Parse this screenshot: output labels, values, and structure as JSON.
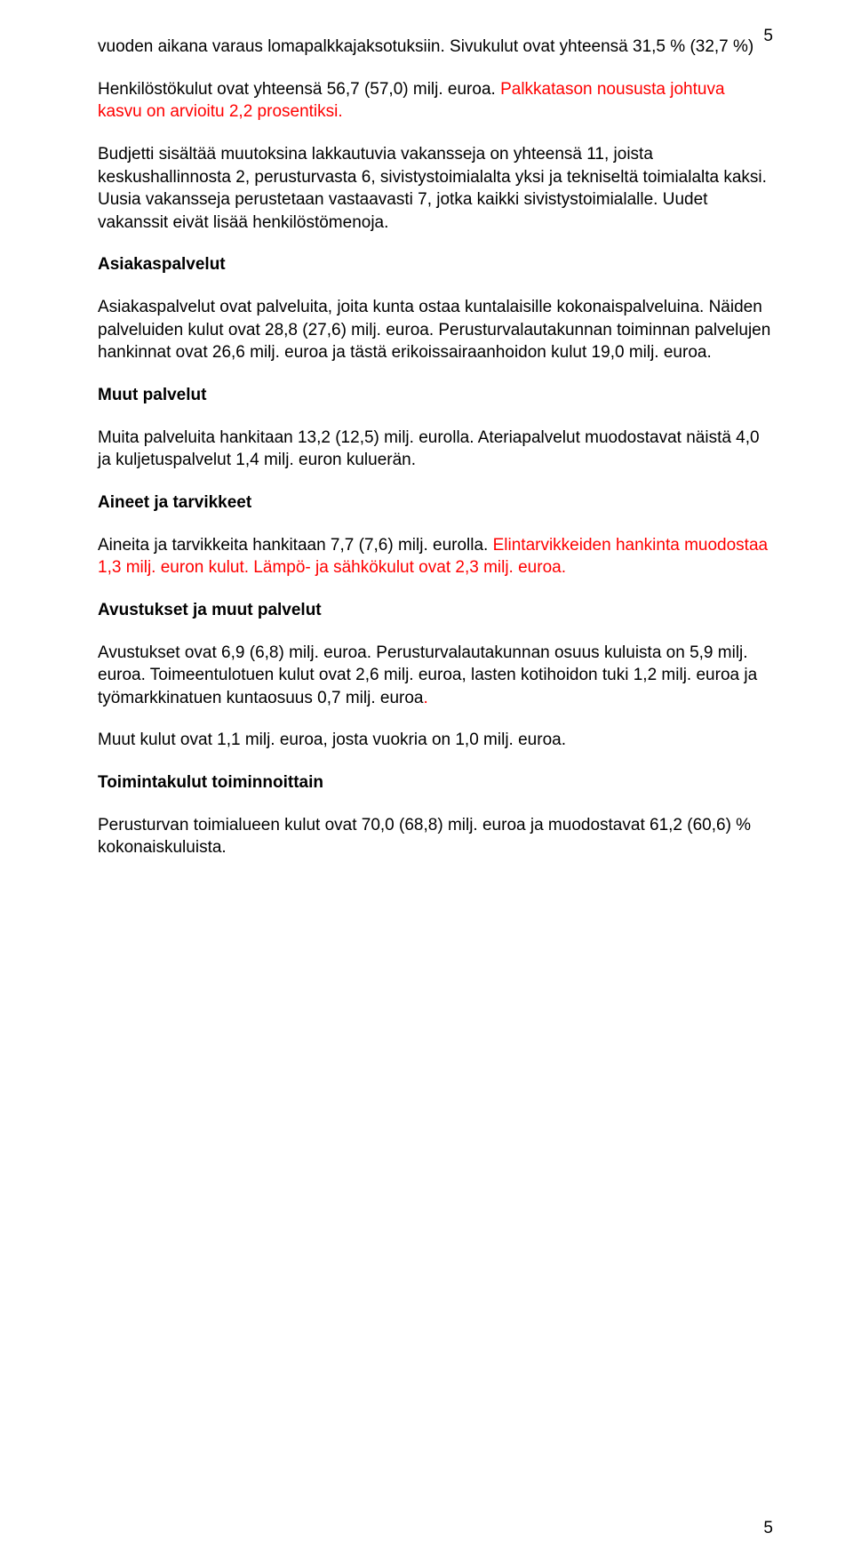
{
  "pageNumberTop": "5",
  "pageNumberBottom": "5",
  "colors": {
    "text": "#000000",
    "red": "#ff0000",
    "background": "#ffffff"
  },
  "typography": {
    "fontFamily": "Arial, Helvetica, sans-serif",
    "bodyFontSize": 19,
    "lineHeight": 1.35,
    "headingWeight": "bold"
  },
  "paragraphs": {
    "p1": "vuoden aikana varaus lomapalkkajaksotuksiin. Sivukulut ovat yhteensä 31,5 % (32,7 %)",
    "p2a": "Henkilöstökulut ovat yhteensä 56,7 (57,0) milj. euroa. ",
    "p2b": "Palkkatason noususta johtuva kasvu on arvioitu 2,2 prosentiksi.",
    "p3": "Budjetti sisältää  muutoksina lakkautuvia vakansseja on yhteensä 11, joista keskushallinnosta 2, perusturvasta 6, sivistystoimialalta yksi ja tekniseltä toimialalta kaksi. Uusia vakansseja perustetaan vastaavasti 7, jotka kaikki sivistystoimialalle. Uudet vakanssit eivät lisää henkilöstömenoja.",
    "p4": "Asiakaspalvelut ovat palveluita, joita kunta ostaa kuntalaisille kokonaispalveluina. Näiden palveluiden kulut ovat 28,8 (27,6) milj. euroa. Perusturvalautakunnan toiminnan palvelujen hankinnat ovat 26,6 milj. euroa ja tästä erikoissairaanhoidon kulut 19,0 milj. euroa.",
    "p5": "Muita palveluita hankitaan 13,2 (12,5) milj. eurolla. Ateriapalvelut muodostavat näistä 4,0 ja kuljetuspalvelut 1,4 milj. euron kuluerän.",
    "p6a": "Aineita ja tarvikkeita hankitaan 7,7 (7,6) milj. eurolla. ",
    "p6b": "Elintarvikkeiden hankinta muodostaa 1,3 milj. euron kulut. Lämpö- ja sähkökulut ovat 2,3 milj. euroa.",
    "p7a": "Avustukset ovat 6,9 (6,8) milj. euroa. Perusturvalautakunnan osuus kuluista on 5,9 milj. euroa. Toimeentulotuen kulut ovat 2,6 milj. euroa, lasten kotihoidon tuki 1,2 milj. euroa ja työmarkkinatuen kuntaosuus 0,7 milj. euroa",
    "p7b": ".",
    "p8": "Muut kulut ovat 1,1 milj. euroa, josta vuokria on 1,0 milj. euroa.",
    "p9": "Perusturvan toimialueen kulut ovat 70,0 (68,8) milj. euroa ja muodostavat 61,2 (60,6) % kokonaiskuluista."
  },
  "headings": {
    "h1": "Asiakaspalvelut",
    "h2": "Muut palvelut",
    "h3": "Aineet ja tarvikkeet",
    "h4": "Avustukset ja muut palvelut",
    "h5": "Toimintakulut toiminnoittain"
  }
}
